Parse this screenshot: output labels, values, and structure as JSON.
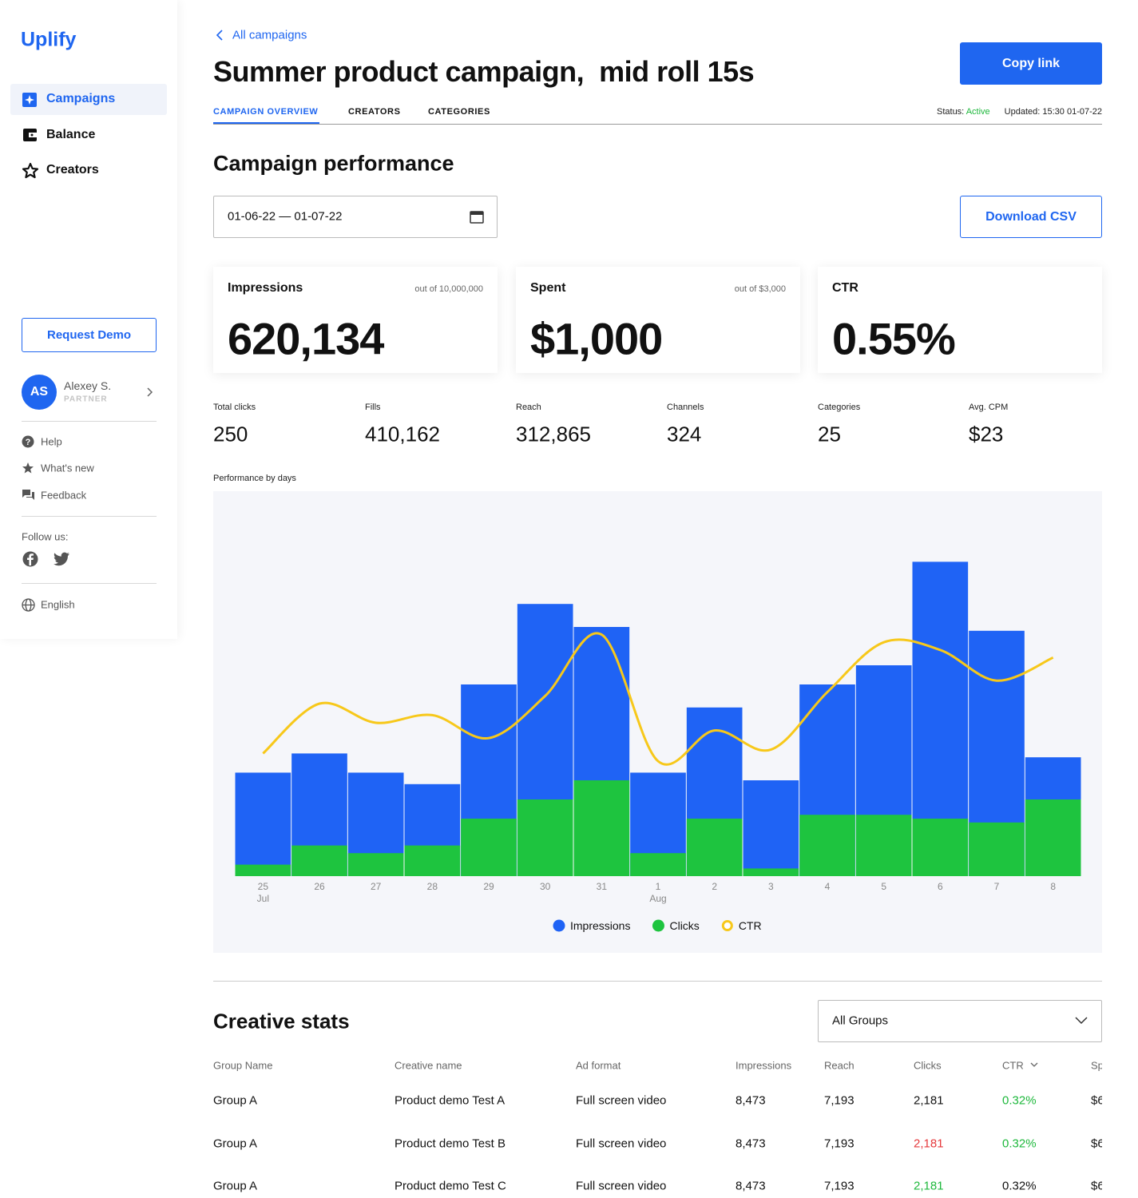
{
  "sidebar": {
    "logo": "Uplify",
    "nav": [
      "Campaigns",
      "Balance",
      "Creators"
    ],
    "request_demo": "Request Demo",
    "user": {
      "initials": "AS",
      "name": "Alexey S.",
      "role": "PARTNER"
    },
    "links": [
      "Help",
      "What's new",
      "Feedback"
    ],
    "follow": "Follow us:",
    "language": "English"
  },
  "header": {
    "back": "All campaigns",
    "title": "Summer product campaign,  mid roll 15s",
    "copy_link": "Copy link",
    "tabs": [
      "CAMPAIGN OVERVIEW",
      "CREATORS",
      "CATEGORIES"
    ],
    "status_label": "Status:",
    "status": "Active",
    "updated": "Updated: 15:30 01-07-22"
  },
  "performance": {
    "title": "Campaign performance",
    "date_range": "01-06-22 — 01-07-22",
    "download": "Download CSV",
    "cards": [
      {
        "label": "Impressions",
        "note": "out of 10,000,000",
        "value": "620,134"
      },
      {
        "label": "Spent",
        "note": "out of $3,000",
        "value": "$1,000"
      },
      {
        "label": "CTR",
        "value": "0.55%"
      }
    ],
    "metrics": [
      {
        "label": "Total clicks",
        "value": "250"
      },
      {
        "label": "Fills",
        "value": "410,162"
      },
      {
        "label": "Reach",
        "value": "312,865"
      },
      {
        "label": "Channels",
        "value": "324"
      },
      {
        "label": "Categories",
        "value": "25"
      },
      {
        "label": "Avg. CPM",
        "value": "$23"
      }
    ]
  },
  "chart_data": {
    "type": "bar",
    "title": "Performance by days",
    "categories": [
      "25",
      "26",
      "27",
      "28",
      "29",
      "30",
      "31",
      "1",
      "2",
      "3",
      "4",
      "5",
      "6",
      "7",
      "8"
    ],
    "month_labels": [
      "Jul",
      null,
      null,
      null,
      null,
      null,
      null,
      "Aug",
      null,
      null,
      null,
      null,
      null,
      null,
      null
    ],
    "ylim": [
      0,
      100
    ],
    "series": [
      {
        "name": "Impressions",
        "color": "#1f63f5",
        "values": [
          27,
          32,
          27,
          24,
          50,
          71,
          65,
          27,
          44,
          25,
          50,
          55,
          82,
          64,
          31
        ]
      },
      {
        "name": "Clicks",
        "color": "#1ec43f",
        "values": [
          3,
          8,
          6,
          8,
          15,
          20,
          25,
          6,
          15,
          2,
          16,
          16,
          15,
          14,
          20
        ]
      },
      {
        "name": "CTR",
        "type": "line",
        "color": "#f7c81a",
        "values": [
          32,
          45,
          40,
          42,
          36,
          47,
          63,
          30,
          38,
          33,
          48,
          61,
          59,
          51,
          57
        ]
      }
    ]
  },
  "creative_stats": {
    "title": "Creative stats",
    "filter": "All Groups",
    "columns": [
      "Group Name",
      "Creative name",
      "Ad format",
      "Impressions",
      "Reach",
      "Clicks",
      "CTR",
      "Sp"
    ],
    "rows": [
      [
        "Group A",
        "Product demo Test A",
        "Full screen video",
        "8,473",
        "7,193",
        "2,181",
        "0.32%",
        "$6"
      ],
      [
        "Group A",
        "Product demo Test B",
        "Full screen video",
        "8,473",
        "7,193",
        "2,181",
        "0.32%",
        "$6"
      ],
      [
        "Group A",
        "Product demo Test C",
        "Full screen video",
        "8,473",
        "7,193",
        "2,181",
        "0.32%",
        "$6"
      ]
    ]
  }
}
